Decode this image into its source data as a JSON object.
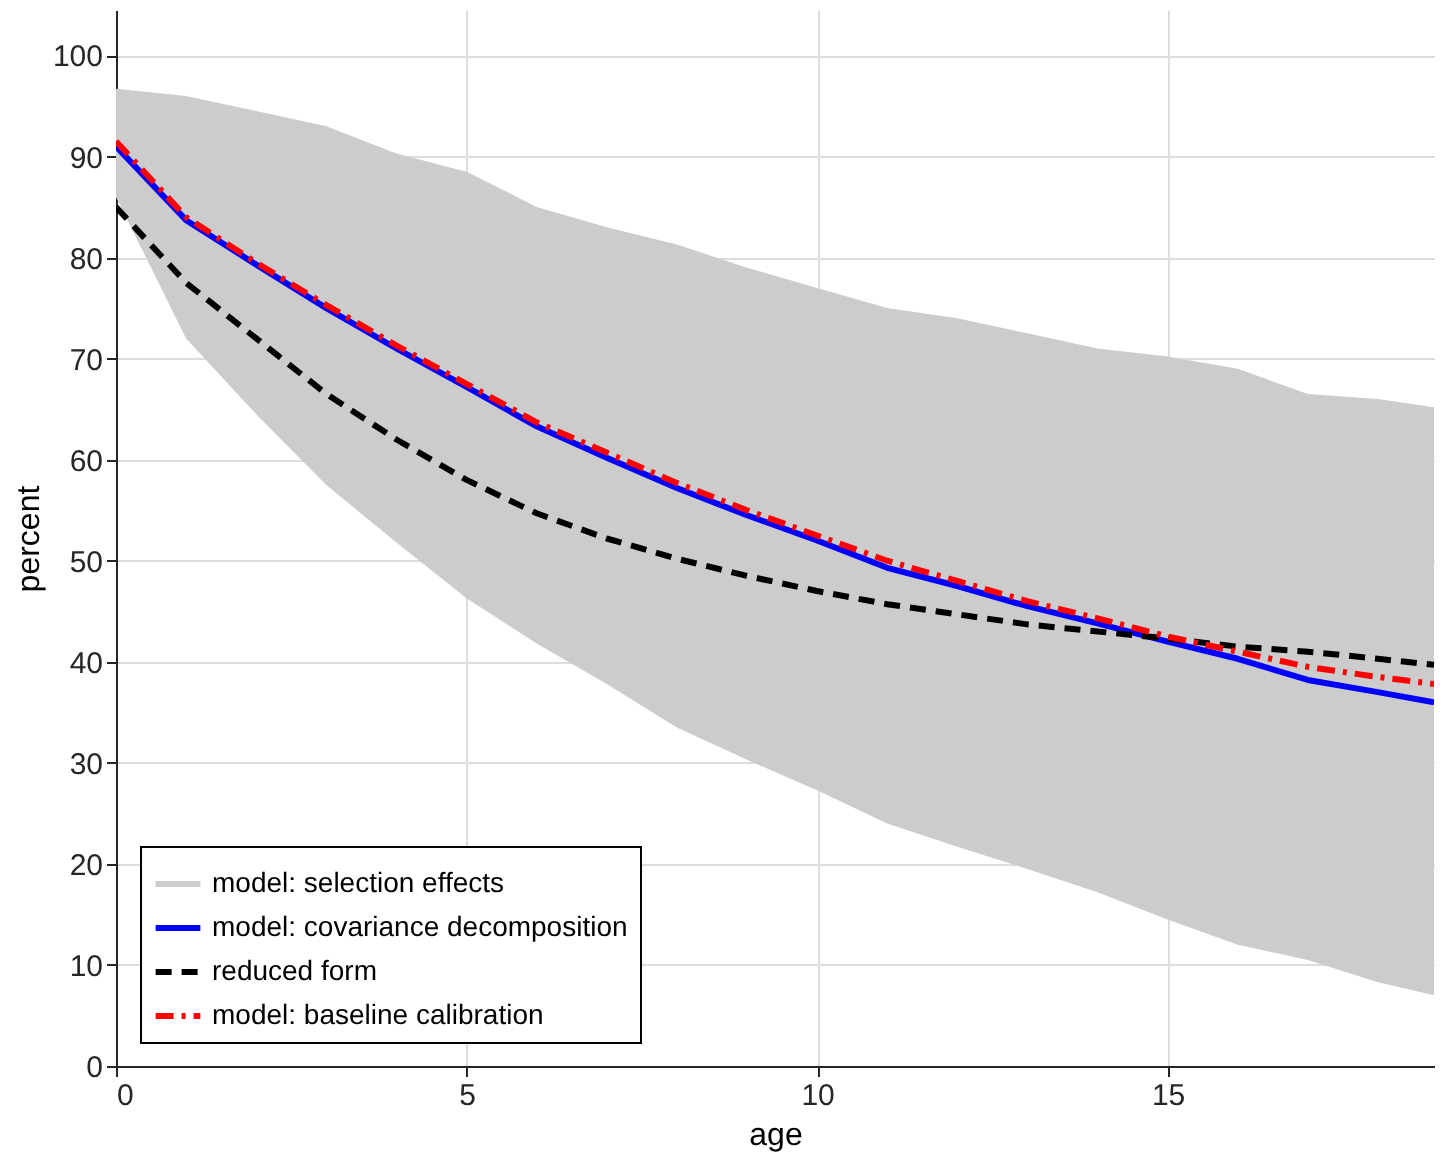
{
  "chart_data": {
    "type": "line",
    "xlabel": "age",
    "ylabel": "percent",
    "x": [
      0,
      1,
      2,
      3,
      4,
      5,
      6,
      7,
      8,
      9,
      10,
      11,
      12,
      13,
      14,
      15,
      16,
      17,
      18,
      18.8
    ],
    "series": [
      {
        "name": "model: selection effects",
        "type": "area",
        "color": "#cccccc",
        "values": [
          null,
          null,
          null,
          null,
          null,
          null,
          null,
          null,
          null,
          null,
          null,
          null,
          null,
          null,
          null,
          null,
          null,
          null,
          null,
          null
        ],
        "lower": [
          86,
          72,
          64.5,
          57.5,
          51.8,
          46.3,
          41.8,
          37.8,
          33.5,
          30.3,
          27.3,
          24,
          21.7,
          19.5,
          17.2,
          14.5,
          12,
          10.5,
          8.3,
          7
        ],
        "upper": [
          96.7,
          96,
          94.5,
          93,
          90.3,
          88.5,
          85,
          83,
          81.3,
          79,
          77,
          75,
          74,
          72.5,
          71,
          70.2,
          69,
          66.5,
          66,
          65.2
        ]
      },
      {
        "name": "model: covariance decomposition",
        "color": "#0000ff",
        "line_style": "solid",
        "values": [
          91,
          83.7,
          79.3,
          75,
          71,
          67.2,
          63.3,
          60.2,
          57.2,
          54.5,
          52,
          49.3,
          47.5,
          45.5,
          43.8,
          42,
          40.3,
          38.2,
          37,
          36
        ]
      },
      {
        "name": "reduced form",
        "color": "#000000",
        "line_style": "dashed",
        "values": [
          85,
          77.5,
          72,
          66.5,
          62,
          58,
          54.7,
          52.2,
          50.2,
          48.5,
          47,
          45.7,
          44.7,
          43.7,
          43,
          42.3,
          41.5,
          41,
          40.3,
          39.7
        ]
      },
      {
        "name": "model: baseline calibration",
        "color": "#ff0000",
        "line_style": "dashdot",
        "values": [
          91.5,
          84,
          79.5,
          75.3,
          71.3,
          67.5,
          63.7,
          60.7,
          57.7,
          55,
          52.5,
          50,
          48,
          46,
          44.3,
          42.5,
          41,
          39.5,
          38.5,
          37.8
        ]
      }
    ],
    "xlim": [
      0,
      18.8
    ],
    "ylim": [
      0,
      104.5
    ],
    "xticks": [
      0,
      5,
      10,
      15
    ],
    "yticks": [
      0,
      10,
      20,
      30,
      40,
      50,
      60,
      70,
      80,
      90,
      100
    ],
    "grid": true,
    "legend": "bottom left"
  }
}
